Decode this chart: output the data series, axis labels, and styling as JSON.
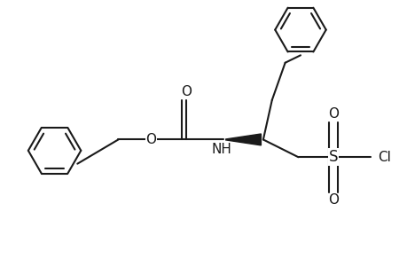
{
  "bg_color": "#ffffff",
  "line_color": "#1a1a1a",
  "lw": 1.5,
  "wedge_color": "#000000",
  "font_size": 11,
  "fig_width": 4.6,
  "fig_height": 3.0,
  "dpi": 100,
  "xlim": [
    0,
    9
  ],
  "ylim": [
    0,
    6
  ]
}
